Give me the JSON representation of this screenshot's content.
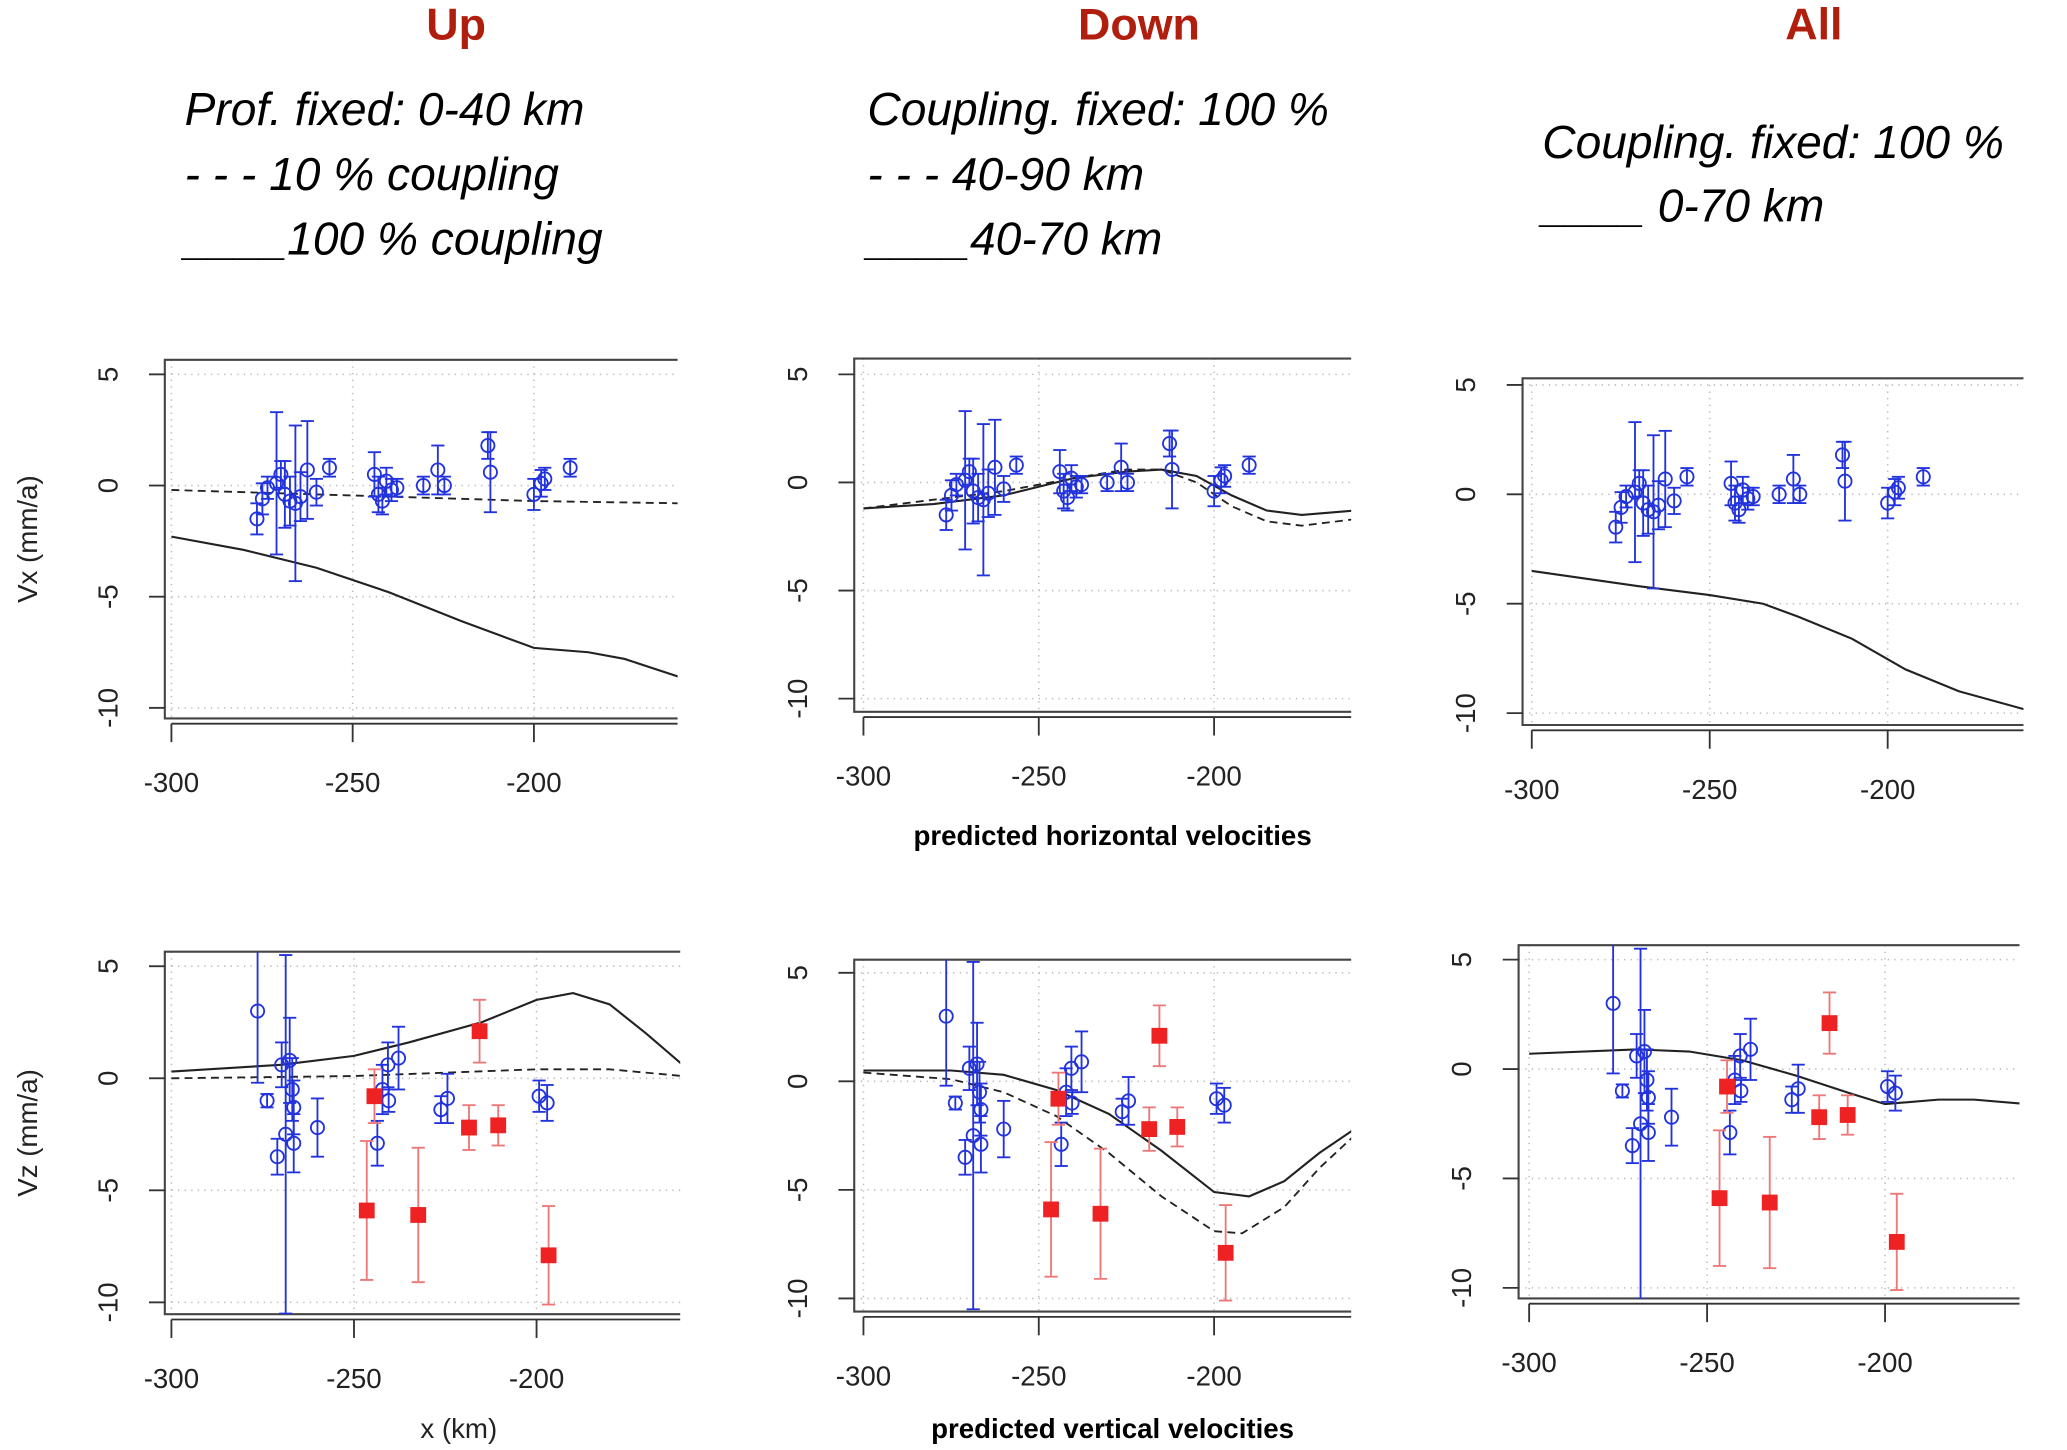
{
  "colors": {
    "title": "#b01e0e",
    "horizontal_obs": "#2233dd",
    "vertical_gps": "#2233dd",
    "vertical_leveling": "#ee2222",
    "model": "#222222",
    "grid": "#bbbbbb"
  },
  "columns": [
    {
      "title": "Up",
      "lines": [
        "Prof. fixed: 0-40 km",
        "- - - 10 % coupling",
        "____100 % coupling"
      ]
    },
    {
      "title": "Down",
      "lines": [
        "Coupling. fixed: 100 %",
        "- - - 40-90 km",
        "____40-70 km"
      ]
    },
    {
      "title": "All",
      "lines": [
        "Coupling. fixed: 100 %",
        "____ 0-70 km"
      ]
    }
  ],
  "captions": {
    "horizontal": "predicted horizontal velocities",
    "vertical": "predicted vertical velocities",
    "xlabel": "x (km)"
  },
  "chart_data": {
    "type": "scatter",
    "xlim": [
      -302,
      -158
    ],
    "ylim": [
      -10.5,
      5.6
    ],
    "xticks": [
      "-300",
      "-250",
      "-200"
    ],
    "yticks": [
      "5",
      "0",
      "-5",
      "-10"
    ],
    "grid": true,
    "observations": {
      "horizontal": [
        [
          -276.4,
          -1.5,
          0.7
        ],
        [
          -274.9,
          -0.6,
          0.7
        ],
        [
          -273.5,
          -0.1,
          0.5
        ],
        [
          -271,
          0.1,
          3.2
        ],
        [
          -269.8,
          0.5,
          0.6
        ],
        [
          -268.7,
          -0.4,
          1.5
        ],
        [
          -267.3,
          -0.7,
          1.1
        ],
        [
          -265.8,
          -0.8,
          3.5
        ],
        [
          -264.4,
          -0.5,
          1.1
        ],
        [
          -262.5,
          0.7,
          2.2
        ],
        [
          -260,
          -0.3,
          0.6
        ],
        [
          -256.4,
          0.8,
          0.4
        ],
        [
          -244,
          0.5,
          1.0
        ],
        [
          -242.9,
          -0.4,
          0.8
        ],
        [
          -241.8,
          -0.7,
          0.6
        ],
        [
          -240.7,
          0.2,
          0.6
        ],
        [
          -239.3,
          -0.2,
          0.5
        ],
        [
          -237.8,
          -0.1,
          0.4
        ],
        [
          -230.5,
          0.0,
          0.4
        ],
        [
          -226.5,
          0.7,
          1.1
        ],
        [
          -224.7,
          0.0,
          0.4
        ],
        [
          -212.7,
          1.8,
          0.6
        ],
        [
          -212,
          0.6,
          1.8
        ],
        [
          -200,
          -0.4,
          0.7
        ],
        [
          -198,
          0.1,
          0.6
        ],
        [
          -197,
          0.3,
          0.5
        ],
        [
          -190,
          0.8,
          0.4
        ]
      ],
      "vertical_gps": [
        [
          -276.4,
          3.0,
          3.2
        ],
        [
          -273.8,
          -1.0,
          0.3
        ],
        [
          -271,
          -3.5,
          0.8
        ],
        [
          -269.8,
          0.6,
          1.0
        ],
        [
          -268.7,
          -2.5,
          8.0
        ],
        [
          -267.6,
          0.8,
          1.9
        ],
        [
          -266.9,
          -0.5,
          1.4
        ],
        [
          -266.5,
          -1.3,
          1.2
        ],
        [
          -266.5,
          -2.9,
          1.3
        ],
        [
          -260,
          -2.2,
          1.3
        ],
        [
          -243.6,
          -2.9,
          1.0
        ],
        [
          -242.2,
          -0.5,
          1.1
        ],
        [
          -240.7,
          0.6,
          1.0
        ],
        [
          -237.8,
          0.9,
          1.4
        ],
        [
          -240.5,
          -1.0,
          0.5
        ],
        [
          -226.2,
          -1.4,
          0.6
        ],
        [
          -224.4,
          -0.9,
          1.1
        ],
        [
          -199.3,
          -0.8,
          0.7
        ],
        [
          -197.1,
          -1.1,
          0.8
        ]
      ],
      "vertical_leveling": [
        [
          -246.5,
          -5.9,
          3.1
        ],
        [
          -244.4,
          -0.8,
          1.2
        ],
        [
          -232.4,
          -6.1,
          3.0
        ],
        [
          -218.5,
          -2.2,
          1.0
        ],
        [
          -215.6,
          2.1,
          1.4
        ],
        [
          -210.5,
          -2.1,
          0.9
        ],
        [
          -196.7,
          -7.9,
          2.2
        ]
      ]
    },
    "panels": [
      {
        "row": "horizontal",
        "column": "Up",
        "ylabel": "Vx (mm/a)",
        "solid": [
          [
            -300,
            -2.3
          ],
          [
            -280,
            -2.9
          ],
          [
            -260,
            -3.7
          ],
          [
            -240,
            -4.8
          ],
          [
            -220,
            -6.1
          ],
          [
            -200,
            -7.3
          ],
          [
            -185,
            -7.5
          ],
          [
            -175,
            -7.8
          ],
          [
            -160,
            -8.6
          ]
        ],
        "dashed": [
          [
            -300,
            -0.2
          ],
          [
            -250,
            -0.45
          ],
          [
            -200,
            -0.7
          ],
          [
            -160,
            -0.8
          ]
        ]
      },
      {
        "row": "horizontal",
        "column": "Down",
        "ylabel": "",
        "solid": [
          [
            -300,
            -1.2
          ],
          [
            -280,
            -1.0
          ],
          [
            -260,
            -0.6
          ],
          [
            -240,
            0.2
          ],
          [
            -225,
            0.5
          ],
          [
            -215,
            0.6
          ],
          [
            -205,
            0.3
          ],
          [
            -195,
            -0.6
          ],
          [
            -185,
            -1.3
          ],
          [
            -175,
            -1.5
          ],
          [
            -160,
            -1.3
          ]
        ],
        "dashed": [
          [
            -300,
            -1.2
          ],
          [
            -280,
            -0.8
          ],
          [
            -260,
            -0.4
          ],
          [
            -240,
            0.2
          ],
          [
            -225,
            0.6
          ],
          [
            -215,
            0.6
          ],
          [
            -205,
            0.0
          ],
          [
            -195,
            -1.1
          ],
          [
            -185,
            -1.8
          ],
          [
            -175,
            -2.0
          ],
          [
            -160,
            -1.7
          ]
        ]
      },
      {
        "row": "horizontal",
        "column": "All",
        "ylabel": "",
        "solid": [
          [
            -300,
            -3.5
          ],
          [
            -270,
            -4.2
          ],
          [
            -250,
            -4.6
          ],
          [
            -235,
            -5.0
          ],
          [
            -225,
            -5.6
          ],
          [
            -210,
            -6.6
          ],
          [
            -195,
            -8.0
          ],
          [
            -180,
            -9.0
          ],
          [
            -160,
            -9.9
          ]
        ],
        "dashed": []
      },
      {
        "row": "vertical",
        "column": "Up",
        "ylabel": "Vz (mm/a)",
        "solid": [
          [
            -300,
            0.3
          ],
          [
            -270,
            0.6
          ],
          [
            -250,
            1.0
          ],
          [
            -235,
            1.6
          ],
          [
            -215,
            2.5
          ],
          [
            -200,
            3.5
          ],
          [
            -190,
            3.8
          ],
          [
            -180,
            3.3
          ],
          [
            -170,
            2.0
          ],
          [
            -160,
            0.6
          ]
        ],
        "dashed": [
          [
            -300,
            0.0
          ],
          [
            -250,
            0.1
          ],
          [
            -200,
            0.4
          ],
          [
            -180,
            0.4
          ],
          [
            -160,
            0.1
          ]
        ]
      },
      {
        "row": "vertical",
        "column": "Down",
        "ylabel": "",
        "solid": [
          [
            -300,
            0.5
          ],
          [
            -275,
            0.5
          ],
          [
            -260,
            0.3
          ],
          [
            -245,
            -0.4
          ],
          [
            -230,
            -1.5
          ],
          [
            -215,
            -3.2
          ],
          [
            -200,
            -5.1
          ],
          [
            -190,
            -5.3
          ],
          [
            -180,
            -4.6
          ],
          [
            -170,
            -3.3
          ],
          [
            -160,
            -2.2
          ]
        ],
        "dashed": [
          [
            -300,
            0.4
          ],
          [
            -275,
            0.1
          ],
          [
            -260,
            -0.5
          ],
          [
            -245,
            -1.6
          ],
          [
            -230,
            -3.3
          ],
          [
            -215,
            -5.3
          ],
          [
            -200,
            -6.9
          ],
          [
            -192,
            -7.0
          ],
          [
            -180,
            -5.8
          ],
          [
            -170,
            -4.0
          ],
          [
            -160,
            -2.5
          ]
        ]
      },
      {
        "row": "vertical",
        "column": "All",
        "ylabel": "",
        "solid": [
          [
            -300,
            0.7
          ],
          [
            -270,
            0.9
          ],
          [
            -255,
            0.8
          ],
          [
            -240,
            0.4
          ],
          [
            -225,
            -0.3
          ],
          [
            -210,
            -1.1
          ],
          [
            -200,
            -1.6
          ],
          [
            -185,
            -1.4
          ],
          [
            -175,
            -1.4
          ],
          [
            -160,
            -1.6
          ]
        ],
        "dashed": []
      }
    ]
  }
}
